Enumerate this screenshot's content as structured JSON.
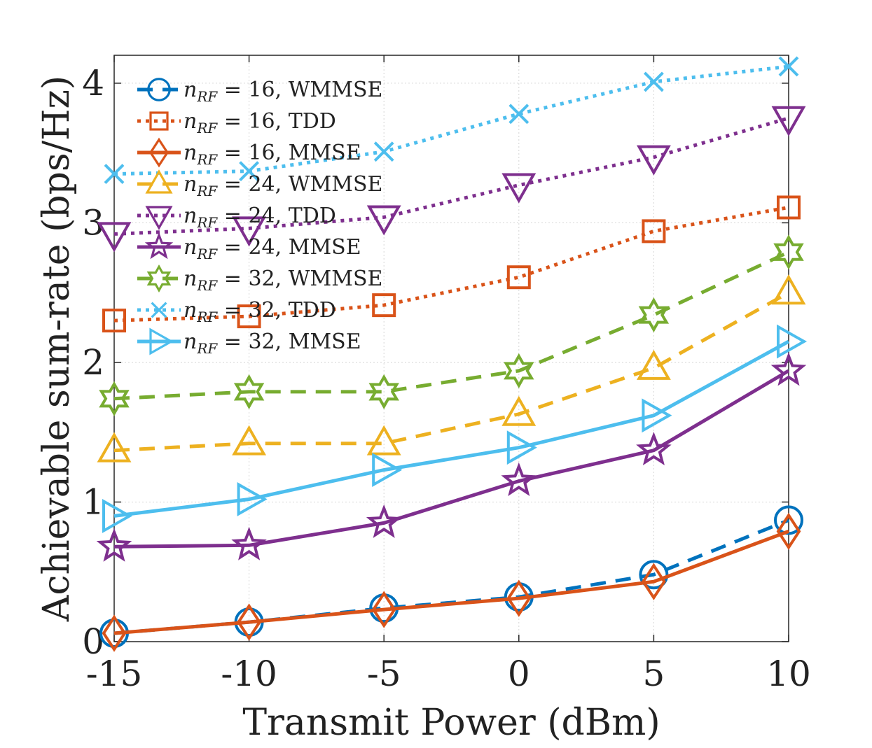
{
  "chart_data": {
    "type": "line",
    "title": "",
    "xlabel": "Transmit Power (dBm)",
    "ylabel": "Achievable sum-rate (bps/Hz)",
    "x": [
      -15,
      -10,
      -5,
      0,
      5,
      10
    ],
    "xticks": [
      -15,
      -10,
      -5,
      0,
      5,
      10
    ],
    "xtick_labels": [
      "-15",
      "-10",
      "-5",
      "0",
      "5",
      "10"
    ],
    "yticks": [
      0,
      1,
      2,
      3,
      4
    ],
    "ytick_labels": [
      "0",
      "1",
      "2",
      "3",
      "4"
    ],
    "xlim": [
      -15,
      10
    ],
    "ylim": [
      0,
      4.2
    ],
    "grid": true,
    "legend_position": "top-left",
    "series": [
      {
        "name": "n_RF = 16, WMMSE",
        "sub": "RF",
        "label_suffix": " = 16, WMMSE",
        "values": [
          0.06,
          0.14,
          0.24,
          0.32,
          0.48,
          0.87
        ],
        "color": "#0072BD",
        "dash": "dashed",
        "marker": "circle"
      },
      {
        "name": "n_RF = 16, TDD",
        "sub": "RF",
        "label_suffix": " = 16, TDD",
        "values": [
          2.3,
          2.33,
          2.41,
          2.61,
          2.94,
          3.11
        ],
        "color": "#D95319",
        "dash": "dotted",
        "marker": "square"
      },
      {
        "name": "n_RF = 16, MMSE",
        "sub": "RF",
        "label_suffix": " = 16, MMSE",
        "values": [
          0.06,
          0.14,
          0.23,
          0.31,
          0.43,
          0.79
        ],
        "color": "#D95319",
        "dash": "solid",
        "marker": "diamond"
      },
      {
        "name": "n_RF = 24, WMMSE",
        "sub": "RF",
        "label_suffix": " = 24, WMMSE",
        "values": [
          1.37,
          1.42,
          1.42,
          1.63,
          1.96,
          2.5
        ],
        "color": "#EDB120",
        "dash": "dashed",
        "marker": "triangle-up"
      },
      {
        "name": "n_RF = 24, TDD",
        "sub": "RF",
        "label_suffix": " = 24, TDD",
        "values": [
          2.92,
          2.96,
          3.04,
          3.27,
          3.47,
          3.75
        ],
        "color": "#7E2F8E",
        "dash": "dotted",
        "marker": "triangle-down"
      },
      {
        "name": "n_RF = 24, MMSE",
        "sub": "RF",
        "label_suffix": " = 24, MMSE",
        "values": [
          0.68,
          0.69,
          0.85,
          1.15,
          1.37,
          1.94
        ],
        "color": "#7E2F8E",
        "dash": "solid",
        "marker": "pentagram"
      },
      {
        "name": "n_RF = 32, WMMSE",
        "sub": "RF",
        "label_suffix": " = 32, WMMSE",
        "values": [
          1.74,
          1.79,
          1.79,
          1.94,
          2.34,
          2.79
        ],
        "color": "#77AC30",
        "dash": "dashed",
        "marker": "hexagram"
      },
      {
        "name": "n_RF = 32, TDD",
        "sub": "RF",
        "label_suffix": " = 32, TDD",
        "values": [
          3.35,
          3.37,
          3.51,
          3.78,
          4.01,
          4.12
        ],
        "color": "#4DBEEE",
        "dash": "dotted",
        "marker": "x"
      },
      {
        "name": "n_RF = 32, MMSE",
        "sub": "RF",
        "label_suffix": " = 32, MMSE",
        "values": [
          0.9,
          1.02,
          1.23,
          1.39,
          1.62,
          2.15
        ],
        "color": "#4DBEEE",
        "dash": "solid",
        "marker": "triangle-right"
      }
    ]
  }
}
